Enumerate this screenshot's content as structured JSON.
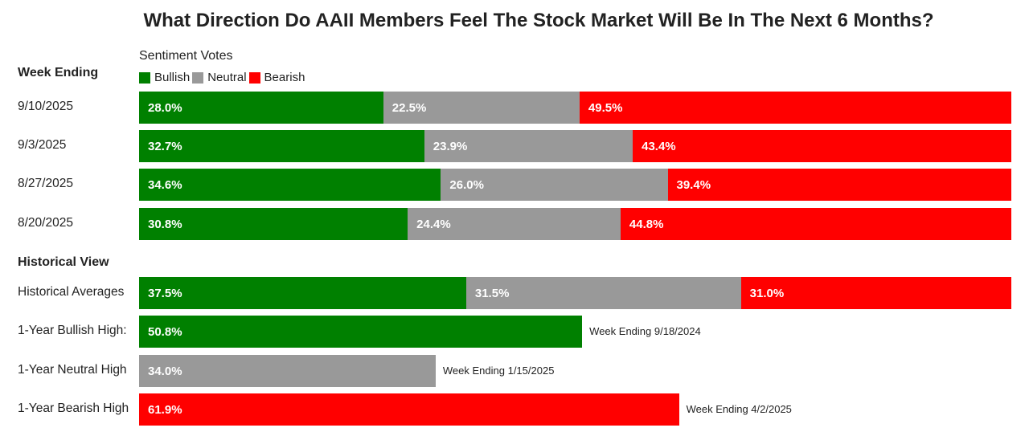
{
  "title": "What Direction Do AAII Members Feel The Stock Market Will Be In The Next 6 Months?",
  "subtitle": "Sentiment Votes",
  "legend": [
    {
      "label": "Bullish",
      "color": "#008000"
    },
    {
      "label": "Neutral",
      "color": "#999999"
    },
    {
      "label": "Bearish",
      "color": "#ff0000"
    }
  ],
  "sections": {
    "weekly_header": "Week Ending",
    "historical_header": "Historical View"
  },
  "chart_data": {
    "type": "bar",
    "stacked": true,
    "orientation": "horizontal",
    "xlim": [
      0,
      100
    ],
    "series_names": [
      "Bullish",
      "Neutral",
      "Bearish"
    ],
    "weekly": [
      {
        "category": "9/10/2025",
        "values": [
          28.0,
          22.5,
          49.5
        ],
        "labels": [
          "28.0%",
          "22.5%",
          "49.5%"
        ]
      },
      {
        "category": "9/3/2025",
        "values": [
          32.7,
          23.9,
          43.4
        ],
        "labels": [
          "32.7%",
          "23.9%",
          "43.4%"
        ]
      },
      {
        "category": "8/27/2025",
        "values": [
          34.6,
          26.0,
          39.4
        ],
        "labels": [
          "34.6%",
          "26.0%",
          "39.4%"
        ]
      },
      {
        "category": "8/20/2025",
        "values": [
          30.8,
          24.4,
          44.8
        ],
        "labels": [
          "30.8%",
          "24.4%",
          "44.8%"
        ]
      }
    ],
    "historical_averages": {
      "category": "Historical Averages",
      "values": [
        37.5,
        31.5,
        31.0
      ],
      "labels": [
        "37.5%",
        "31.5%",
        "31.0%"
      ]
    },
    "highs": [
      {
        "category": "1-Year Bullish High:",
        "series": "Bullish",
        "value": 50.8,
        "label": "50.8%",
        "note": "Week Ending 9/18/2024"
      },
      {
        "category": "1-Year Neutral High",
        "series": "Neutral",
        "value": 34.0,
        "label": "34.0%",
        "note": "Week Ending 1/15/2025"
      },
      {
        "category": "1-Year Bearish High",
        "series": "Bearish",
        "value": 61.9,
        "label": "61.9%",
        "note": "Week Ending 4/2/2025"
      }
    ]
  }
}
